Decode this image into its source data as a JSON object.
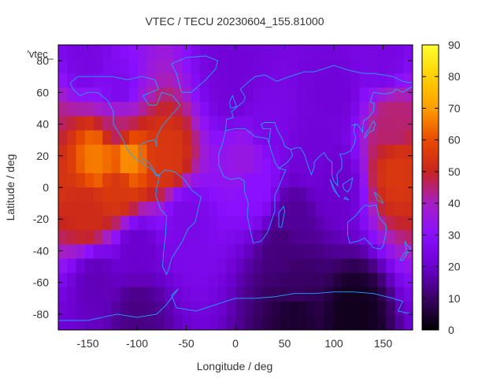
{
  "chart_data": {
    "type": "heatmap",
    "title": "VTEC / TECU 20230604_155.81000",
    "xlabel": "Longitude / deg",
    "ylabel": "Latitude / deg",
    "legend_label": "'vtec_",
    "xlim": [
      -180,
      180
    ],
    "ylim": [
      -90,
      90
    ],
    "x_ticks": [
      -150,
      -100,
      -50,
      0,
      50,
      100,
      150
    ],
    "y_ticks": [
      -80,
      -60,
      -40,
      -20,
      0,
      20,
      40,
      60,
      80
    ],
    "colorbar": {
      "range": [
        0,
        90
      ],
      "ticks": [
        0,
        10,
        20,
        30,
        40,
        50,
        60,
        70,
        80,
        90
      ],
      "palette": [
        "#000000",
        "#3a0066",
        "#6b00ce",
        "#8a10ff",
        "#a51fc4",
        "#c8251f",
        "#e84a00",
        "#ff9e00",
        "#ffd000",
        "#ffff33"
      ]
    },
    "grid": false,
    "coastline_color": "#1fa6ff",
    "regions": [
      {
        "lat": 82,
        "lon": -150,
        "vtec": 24
      },
      {
        "lat": 82,
        "lon": 0,
        "vtec": 22
      },
      {
        "lat": 82,
        "lon": 150,
        "vtec": 24
      },
      {
        "lat": 60,
        "lon": -120,
        "vtec": 26
      },
      {
        "lat": 60,
        "lon": 0,
        "vtec": 22
      },
      {
        "lat": 60,
        "lon": 100,
        "vtec": 22
      },
      {
        "lat": 40,
        "lon": -120,
        "vtec": 45
      },
      {
        "lat": 40,
        "lon": 30,
        "vtec": 25
      },
      {
        "lat": 40,
        "lon": 160,
        "vtec": 45
      },
      {
        "lat": 18,
        "lon": -140,
        "vtec": 66
      },
      {
        "lat": 18,
        "lon": -110,
        "vtec": 68
      },
      {
        "lat": 18,
        "lon": -70,
        "vtec": 55
      },
      {
        "lat": 18,
        "lon": 10,
        "vtec": 35
      },
      {
        "lat": 18,
        "lon": 80,
        "vtec": 22
      },
      {
        "lat": 10,
        "lon": 165,
        "vtec": 55
      },
      {
        "lat": 0,
        "lon": -120,
        "vtec": 55
      },
      {
        "lat": 0,
        "lon": 20,
        "vtec": 30
      },
      {
        "lat": 0,
        "lon": 100,
        "vtec": 20
      },
      {
        "lat": -15,
        "lon": -150,
        "vtec": 52
      },
      {
        "lat": -20,
        "lon": -50,
        "vtec": 25
      },
      {
        "lat": -20,
        "lon": 60,
        "vtec": 15
      },
      {
        "lat": -40,
        "lon": -100,
        "vtec": 20
      },
      {
        "lat": -40,
        "lon": 50,
        "vtec": 12
      },
      {
        "lat": -60,
        "lon": -140,
        "vtec": 18
      },
      {
        "lat": -60,
        "lon": 60,
        "vtec": 10
      },
      {
        "lat": -80,
        "lon": -100,
        "vtec": 13
      },
      {
        "lat": -80,
        "lon": 60,
        "vtec": 5
      },
      {
        "lat": -80,
        "lon": 120,
        "vtec": 3
      }
    ]
  }
}
